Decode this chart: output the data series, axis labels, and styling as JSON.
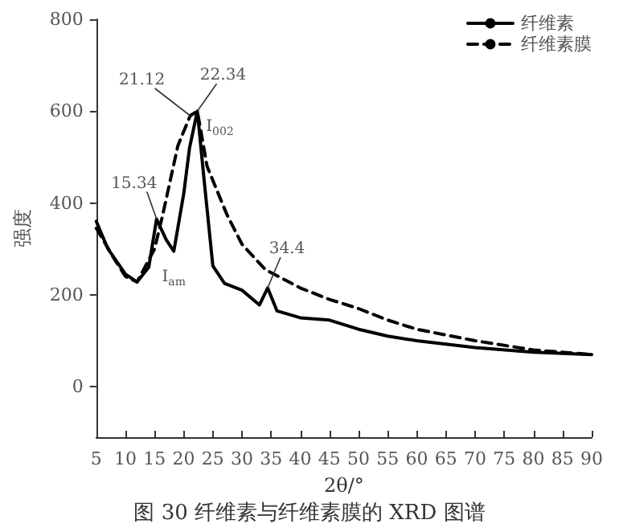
{
  "chart_data": {
    "type": "line",
    "title": "图 30 纤维素与纤维素膜的 XRD 图谱",
    "xlabel": "2θ/°",
    "ylabel": "强度",
    "xlim": [
      5,
      90
    ],
    "xticks": [
      5,
      10,
      15,
      20,
      25,
      30,
      35,
      40,
      45,
      50,
      55,
      60,
      65,
      70,
      75,
      80,
      85,
      90
    ],
    "ylim": [
      -110,
      800
    ],
    "yticks": [
      0,
      200,
      400,
      600,
      800
    ],
    "grid": false,
    "legend": "top right",
    "marker": "none",
    "series": [
      {
        "name": "纤维素",
        "color": "#000000",
        "line_style": "solid",
        "x": [
          5,
          7,
          10,
          12,
          14,
          15.34,
          17,
          18.3,
          20,
          21,
          22.34,
          23.5,
          25,
          27,
          30,
          33,
          34.4,
          36,
          40,
          45,
          50,
          55,
          60,
          70,
          80,
          90
        ],
        "values": [
          360,
          300,
          245,
          228,
          260,
          365,
          320,
          295,
          420,
          520,
          600,
          450,
          263,
          225,
          210,
          178,
          215,
          165,
          150,
          145,
          125,
          110,
          100,
          85,
          75,
          70
        ]
      },
      {
        "name": "纤维素膜",
        "color": "#000000",
        "line_style": "dashed",
        "x": [
          5,
          8,
          10,
          12,
          15,
          16.5,
          19,
          21.12,
          22.34,
          24,
          27.4,
          30,
          34,
          40,
          45,
          50,
          55,
          60,
          70,
          80,
          90
        ],
        "values": [
          345,
          280,
          240,
          228,
          300,
          380,
          525,
          590,
          600,
          480,
          375,
          310,
          255,
          215,
          190,
          170,
          145,
          125,
          100,
          80,
          70
        ]
      }
    ],
    "annotations": [
      {
        "text": "15.34",
        "x": 15.34,
        "y": 365
      },
      {
        "text": "21.12",
        "x": 21.12,
        "y": 590
      },
      {
        "text": "22.34",
        "x": 22.34,
        "y": 600
      },
      {
        "text": "34.4",
        "x": 34.4,
        "y": 215
      },
      {
        "text": "I$_{002}$",
        "x": 22.34,
        "y": 600
      },
      {
        "text": "I$_{am}$",
        "x": 18.3,
        "y": 295
      }
    ]
  }
}
